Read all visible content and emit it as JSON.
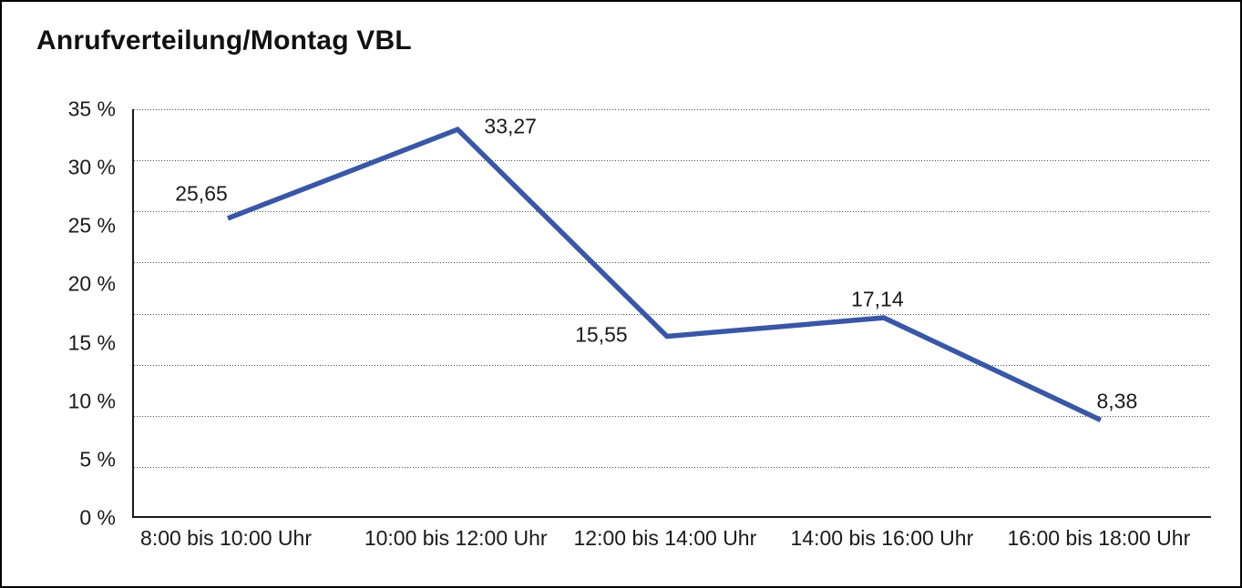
{
  "chart_data": {
    "type": "line",
    "title": "Anrufverteilung/Montag VBL",
    "categories": [
      "8:00 bis 10:00 Uhr",
      "10:00 bis 12:00 Uhr",
      "12:00 bis 14:00 Uhr",
      "14:00 bis 16:00 Uhr",
      "16:00 bis 18:00 Uhr"
    ],
    "values": [
      25.65,
      33.27,
      15.55,
      17.14,
      8.38
    ],
    "value_labels": [
      "25,65",
      "33,27",
      "15,55",
      "17,14",
      "8,38"
    ],
    "y_ticks": [
      "35 %",
      "30 %",
      "25 %",
      "20 %",
      "15 %",
      "10 %",
      "5 %",
      "0 %"
    ],
    "y_tick_values": [
      35,
      30,
      25,
      20,
      15,
      10,
      5,
      0
    ],
    "ylim": [
      0,
      35
    ],
    "xlabel": "",
    "ylabel": "",
    "grid": "horizontal-dotted",
    "grid_divisions": 8,
    "legend": "none",
    "line_color": "#3A57A5",
    "axis_color": "#1a1a1a",
    "text_color": "#1a1a1a"
  }
}
